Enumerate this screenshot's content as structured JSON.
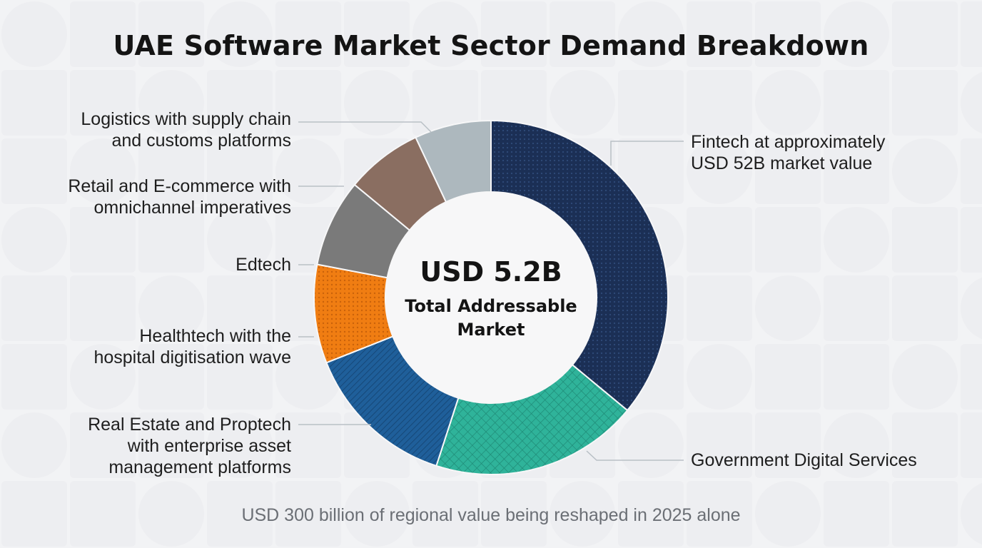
{
  "chart_data": {
    "type": "pie",
    "variant": "donut",
    "title": "UAE Software Market Sector Demand Breakdown",
    "center_value": "USD 5.2B",
    "center_caption_lines": [
      "Total Addressable",
      "Market"
    ],
    "footer": "USD 300 billion of regional value being reshaped in 2025 alone",
    "slices": [
      {
        "label_lines": [
          "Fintech at approximately",
          "USD 52B market value"
        ],
        "value": 36,
        "color": "#1b2f55",
        "pattern": "dots",
        "label_side": "right"
      },
      {
        "label_lines": [
          "Government Digital Services"
        ],
        "value": 19,
        "color": "#2fb39a",
        "pattern": "crosshatch",
        "label_side": "right"
      },
      {
        "label_lines": [
          "Real Estate and Proptech",
          "with enterprise asset",
          "management platforms"
        ],
        "value": 14,
        "color": "#1f5f9a",
        "pattern": "diagonal",
        "label_side": "left"
      },
      {
        "label_lines": [
          "Healthtech with the",
          "hospital digitisation wave"
        ],
        "value": 9,
        "color": "#f07d12",
        "pattern": "dots",
        "label_side": "left"
      },
      {
        "label_lines": [
          "Edtech"
        ],
        "value": 8,
        "color": "#7a7a7a",
        "pattern": "none",
        "label_side": "left"
      },
      {
        "label_lines": [
          "Retail and E-commerce with",
          "omnichannel imperatives"
        ],
        "value": 7,
        "color": "#8a6e61",
        "pattern": "none",
        "label_side": "left"
      },
      {
        "label_lines": [
          "Logistics with supply chain",
          "and customs platforms"
        ],
        "value": 7,
        "color": "#adb8be",
        "pattern": "none",
        "label_side": "left"
      }
    ]
  }
}
